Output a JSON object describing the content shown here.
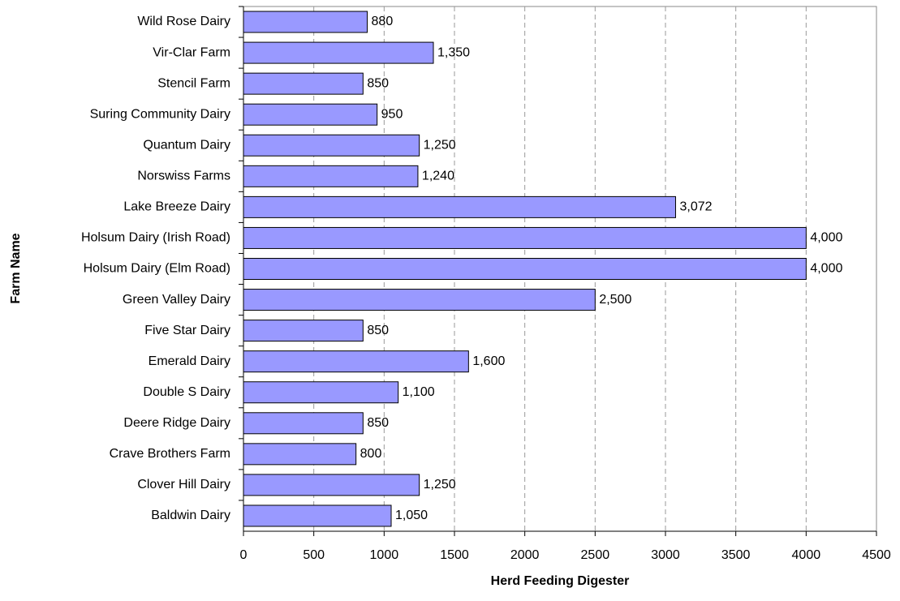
{
  "chart_data": {
    "type": "barh",
    "x_label": "Herd Feeding Digester",
    "y_label": "Farm Name",
    "categories": [
      "Wild Rose Dairy",
      "Vir-Clar Farm",
      "Stencil Farm",
      "Suring Community Dairy",
      "Quantum Dairy",
      "Norswiss Farms",
      "Lake Breeze Dairy",
      "Holsum Dairy (Irish Road)",
      "Holsum Dairy (Elm Road)",
      "Green Valley Dairy",
      "Five Star Dairy",
      "Emerald Dairy",
      "Double S Dairy",
      "Deere Ridge Dairy",
      "Crave Brothers Farm",
      "Clover Hill Dairy",
      "Baldwin Dairy"
    ],
    "values": [
      880,
      1350,
      850,
      950,
      1250,
      1240,
      3072,
      4000,
      4000,
      2500,
      850,
      1600,
      1100,
      850,
      800,
      1250,
      1050
    ],
    "value_labels": [
      "880",
      "1,350",
      "850",
      "950",
      "1,250",
      "1,240",
      "3,072",
      "4,000",
      "4,000",
      "2,500",
      "850",
      "1,600",
      "1,100",
      "850",
      "800",
      "1,250",
      "1,050"
    ],
    "color": "#9999ff",
    "xlim": [
      0,
      4500
    ],
    "xticks": [
      0,
      500,
      1000,
      1500,
      2000,
      2500,
      3000,
      3500,
      4000,
      4500
    ],
    "grid": true
  }
}
